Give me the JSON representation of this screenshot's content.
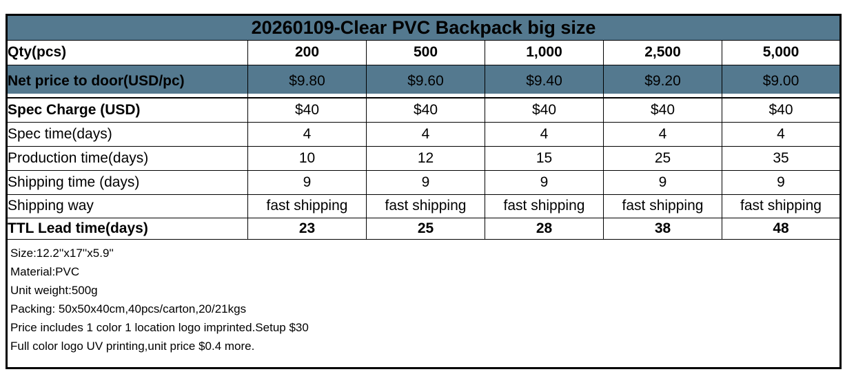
{
  "accent_color": "#54798F",
  "border_color": "#000000",
  "title": "20260109-Clear PVC Backpack big size",
  "rows": [
    {
      "label": "Qty(pcs)",
      "values": [
        "200",
        "500",
        "1,000",
        "2,500",
        "5,000"
      ]
    },
    {
      "label": "Net price to door(USD/pc)",
      "values": [
        "$9.80",
        "$9.60",
        "$9.40",
        "$9.20",
        "$9.00"
      ]
    },
    {
      "label": "Spec Charge (USD)",
      "values": [
        "$40",
        "$40",
        "$40",
        "$40",
        "$40"
      ]
    },
    {
      "label": "Spec time(days)",
      "values": [
        "4",
        "4",
        "4",
        "4",
        "4"
      ]
    },
    {
      "label": "Production time(days)",
      "values": [
        "10",
        "12",
        "15",
        "25",
        "35"
      ]
    },
    {
      "label": "Shipping time (days)",
      "values": [
        "9",
        "9",
        "9",
        "9",
        "9"
      ]
    },
    {
      "label": "Shipping way",
      "values": [
        "fast shipping",
        "fast shipping",
        "fast shipping",
        "fast shipping",
        "fast shipping"
      ]
    },
    {
      "label": "TTL Lead time(days)",
      "values": [
        "23",
        "25",
        "28",
        "38",
        "48"
      ]
    }
  ],
  "notes": [
    "Size:12.2''x17''x5.9''",
    "Material:PVC",
    "Unit weight:500g",
    "Packing: 50x50x40cm,40pcs/carton,20/21kgs",
    "Price includes 1 color 1 location logo imprinted.Setup $30",
    "Full color logo UV printing,unit price $0.4 more."
  ]
}
